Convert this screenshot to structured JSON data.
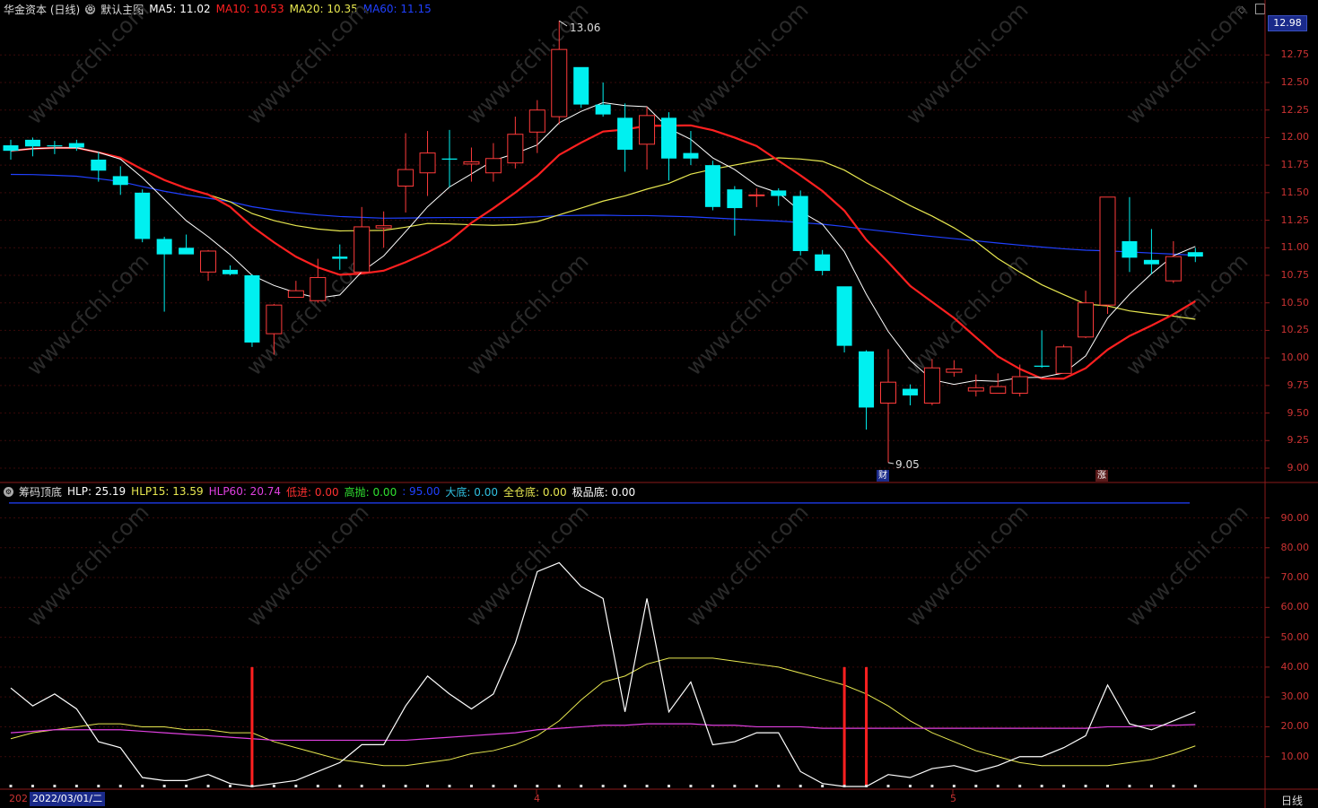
{
  "header": {
    "title": "华金资本 (日线)",
    "chart_name": "默认主图",
    "ma5": "MA5: 11.02",
    "ma10": "MA10: 10.53",
    "ma20": "MA20: 10.35",
    "ma60": "MA60: 11.15",
    "current_price": "12.98"
  },
  "colors": {
    "up": "#ff3b3b",
    "down": "#00f0f0",
    "ma5": "#ffffff",
    "ma10": "#ff2020",
    "ma20": "#e8e850",
    "ma60": "#2040ff",
    "hlp15": "#e8e850",
    "hlp60": "#e040e0"
  },
  "price_axis": [
    "12.75",
    "12.50",
    "12.25",
    "12.00",
    "11.75",
    "11.50",
    "11.25",
    "11.00",
    "10.75",
    "10.50",
    "10.25",
    "10.00",
    "9.75",
    "9.50",
    "9.25",
    "9.00"
  ],
  "annotations": {
    "high": "13.06",
    "low": "9.05",
    "low_marker": "财",
    "rise_marker": "涨"
  },
  "indicator": {
    "name": "筹码顶底",
    "hlp": "HLP: 25.19",
    "hlp15": "HLP15: 13.59",
    "hlp60": "HLP60: 20.74",
    "low_in": "低进: 0.00",
    "high_out": "高抛: 0.00",
    "extra": ": 95.00",
    "big_bottom": "大底: 0.00",
    "full_bottom": "全仓底: 0.00",
    "extreme_bottom": "极品底: 0.00",
    "axis": [
      "90.00",
      "80.00",
      "70.00",
      "60.00",
      "50.00",
      "40.00",
      "30.00",
      "20.00",
      "10.00"
    ]
  },
  "footer": {
    "year_prefix": "202",
    "date": "2022/03/01/二",
    "month_4": "4",
    "month_5": "5",
    "period": "日线"
  },
  "chart_data": {
    "type": "candlestick",
    "candles": [
      [
        11.93,
        11.88,
        11.98,
        11.8
      ],
      [
        11.98,
        11.92,
        12.0,
        11.83
      ],
      [
        11.93,
        11.92,
        11.97,
        11.85
      ],
      [
        11.95,
        11.91,
        11.98,
        11.88
      ],
      [
        11.8,
        11.7,
        11.87,
        11.6
      ],
      [
        11.65,
        11.57,
        11.74,
        11.48
      ],
      [
        11.5,
        11.08,
        11.53,
        11.05
      ],
      [
        11.08,
        10.94,
        11.1,
        10.42
      ],
      [
        11.0,
        10.94,
        11.12,
        10.96
      ],
      [
        10.78,
        10.97,
        10.98,
        10.7
      ],
      [
        10.8,
        10.76,
        10.84,
        10.75
      ],
      [
        10.75,
        10.14,
        10.76,
        10.1
      ],
      [
        10.22,
        10.48,
        10.49,
        10.03
      ],
      [
        10.55,
        10.61,
        10.7,
        10.55
      ],
      [
        10.52,
        10.73,
        10.9,
        10.5
      ],
      [
        10.92,
        10.9,
        11.03,
        10.8
      ],
      [
        10.78,
        11.19,
        11.37,
        10.76
      ],
      [
        11.18,
        11.2,
        11.33,
        11.0
      ],
      [
        11.56,
        11.71,
        12.04,
        11.32
      ],
      [
        11.68,
        11.86,
        12.06,
        11.47
      ],
      [
        11.81,
        11.8,
        12.07,
        11.55
      ],
      [
        11.76,
        11.78,
        11.91,
        11.6
      ],
      [
        11.68,
        11.81,
        11.95,
        11.6
      ],
      [
        11.77,
        12.03,
        12.19,
        11.72
      ],
      [
        12.05,
        12.25,
        12.34,
        11.86
      ],
      [
        12.19,
        12.8,
        13.06,
        12.12
      ],
      [
        12.64,
        12.3,
        12.63,
        12.27
      ],
      [
        12.3,
        12.21,
        12.5,
        12.19
      ],
      [
        12.18,
        11.89,
        12.31,
        11.69
      ],
      [
        11.94,
        12.2,
        12.28,
        11.71
      ],
      [
        12.18,
        11.81,
        12.23,
        11.61
      ],
      [
        11.86,
        11.81,
        12.06,
        11.75
      ],
      [
        11.75,
        11.37,
        11.79,
        11.34
      ],
      [
        11.53,
        11.36,
        11.56,
        11.11
      ],
      [
        11.48,
        11.48,
        11.54,
        11.37
      ],
      [
        11.52,
        11.47,
        11.54,
        11.38
      ],
      [
        11.47,
        10.97,
        11.52,
        10.93
      ],
      [
        10.94,
        10.79,
        10.98,
        10.75
      ],
      [
        10.65,
        10.11,
        10.64,
        10.05
      ],
      [
        10.06,
        9.55,
        10.07,
        9.35
      ],
      [
        9.59,
        9.78,
        10.08,
        9.05
      ],
      [
        9.72,
        9.66,
        9.76,
        9.57
      ],
      [
        9.59,
        9.91,
        9.99,
        9.57
      ],
      [
        9.87,
        9.9,
        9.98,
        9.83
      ],
      [
        9.7,
        9.73,
        9.85,
        9.65
      ],
      [
        9.68,
        9.74,
        9.86,
        9.68
      ],
      [
        9.68,
        9.83,
        9.94,
        9.65
      ],
      [
        9.93,
        9.92,
        10.25,
        9.91
      ],
      [
        9.86,
        10.1,
        10.12,
        9.86
      ],
      [
        10.19,
        10.5,
        10.61,
        10.18
      ],
      [
        10.48,
        11.46,
        11.46,
        10.4
      ],
      [
        11.06,
        10.91,
        11.46,
        10.78
      ],
      [
        10.89,
        10.85,
        11.17,
        10.76
      ],
      [
        10.7,
        10.92,
        11.06,
        10.68
      ],
      [
        10.96,
        10.92,
        11.0,
        10.87
      ]
    ],
    "indicator_series": {
      "HLP": [
        33,
        27,
        31,
        26,
        15,
        13,
        3,
        2,
        2,
        4,
        1,
        0,
        1,
        2,
        5,
        8,
        14,
        14,
        27,
        37,
        31,
        26,
        31,
        48,
        72,
        75,
        67,
        63,
        25,
        63,
        25,
        35,
        14,
        15,
        18,
        18,
        5,
        1,
        0,
        0,
        4,
        3,
        6,
        7,
        5,
        7,
        10,
        10,
        13,
        17,
        34,
        21,
        19,
        22,
        25
      ],
      "HLP15": [
        16,
        18,
        19,
        20,
        21,
        21,
        20,
        20,
        19,
        19,
        18,
        18,
        15,
        13,
        11,
        9,
        8,
        7,
        7,
        8,
        9,
        11,
        12,
        14,
        17,
        22,
        29,
        35,
        37,
        41,
        43,
        43,
        43,
        42,
        41,
        40,
        38,
        36,
        34,
        31,
        27,
        22,
        18,
        15,
        12,
        10,
        8,
        7,
        7,
        7,
        7,
        8,
        9,
        11,
        13.59
      ],
      "HLP60": [
        18,
        18.5,
        19,
        19,
        19,
        19,
        18.5,
        18,
        17.5,
        17,
        16.5,
        16,
        15.5,
        15.5,
        15.5,
        15.5,
        15.5,
        15.5,
        15.5,
        16,
        16.5,
        17,
        17.5,
        18,
        19,
        19.5,
        20,
        20.5,
        20.5,
        21,
        21,
        21,
        20.5,
        20.5,
        20,
        20,
        20,
        19.5,
        19.5,
        19.5,
        19.5,
        19.5,
        19.5,
        19.5,
        19.5,
        19.5,
        19.5,
        19.5,
        19.5,
        19.5,
        20,
        20,
        20.5,
        20.5,
        20.74
      ],
      "blue_line": 95
    },
    "signal_bars": [
      11,
      38,
      39
    ]
  }
}
